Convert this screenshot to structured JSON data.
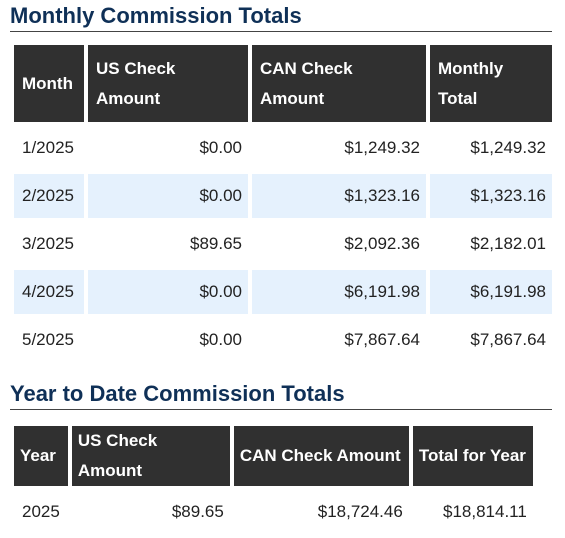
{
  "monthly": {
    "title": "Monthly Commission Totals",
    "headers": {
      "month": "Month",
      "us_line1": "US Check",
      "us_line2": "Amount",
      "can_line1": "CAN Check",
      "can_line2": "Amount",
      "total_line1": "Monthly",
      "total_line2": "Total"
    },
    "rows": [
      {
        "month": "1/2025",
        "us": "$0.00",
        "can": "$1,249.32",
        "total": "$1,249.32"
      },
      {
        "month": "2/2025",
        "us": "$0.00",
        "can": "$1,323.16",
        "total": "$1,323.16"
      },
      {
        "month": "3/2025",
        "us": "$89.65",
        "can": "$2,092.36",
        "total": "$2,182.01"
      },
      {
        "month": "4/2025",
        "us": "$0.00",
        "can": "$6,191.98",
        "total": "$6,191.98"
      },
      {
        "month": "5/2025",
        "us": "$0.00",
        "can": "$7,867.64",
        "total": "$7,867.64"
      }
    ]
  },
  "ytd": {
    "title": "Year to Date Commission Totals",
    "headers": {
      "year": "Year",
      "us": "US Check Amount",
      "can": "CAN Check Amount",
      "total": "Total for Year"
    },
    "rows": [
      {
        "year": "2025",
        "us": "$89.65",
        "can": "$18,724.46",
        "total": "$18,814.11"
      }
    ]
  },
  "colors": {
    "title": "#0f3057",
    "header_bg": "#303030",
    "header_text": "#ffffff",
    "alt_row_bg": "#e5f1fd"
  }
}
